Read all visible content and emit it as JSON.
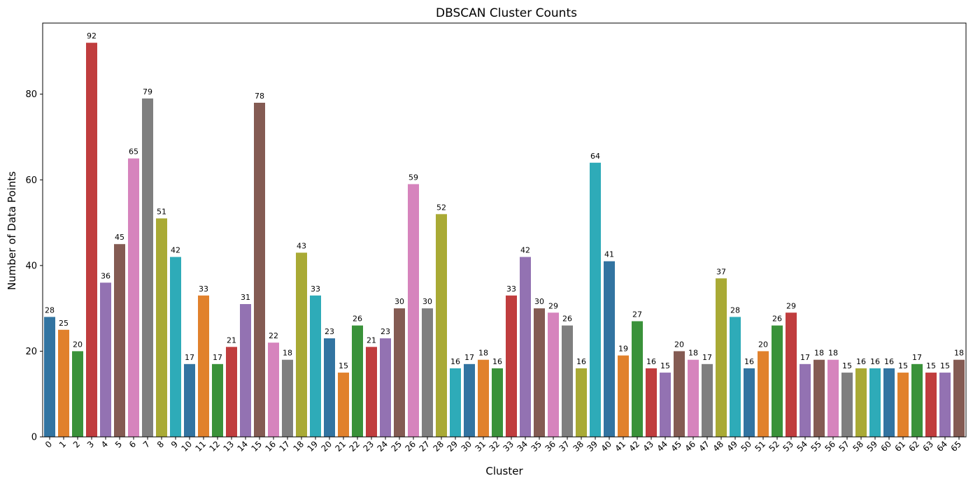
{
  "chart_data": {
    "type": "bar",
    "title": "DBSCAN Cluster Counts",
    "xlabel": "Cluster",
    "ylabel": "Number of Data Points",
    "ylim": [
      0,
      96.6
    ],
    "yticks": [
      0,
      20,
      40,
      60,
      80
    ],
    "grid": false,
    "legend": "none",
    "categories": [
      "0",
      "1",
      "2",
      "3",
      "4",
      "5",
      "6",
      "7",
      "8",
      "9",
      "10",
      "11",
      "12",
      "13",
      "14",
      "15",
      "16",
      "17",
      "18",
      "19",
      "20",
      "21",
      "22",
      "23",
      "24",
      "25",
      "26",
      "27",
      "28",
      "29",
      "30",
      "31",
      "32",
      "33",
      "34",
      "35",
      "36",
      "37",
      "38",
      "39",
      "40",
      "41",
      "42",
      "43",
      "44",
      "45",
      "46",
      "47",
      "48",
      "49",
      "50",
      "51",
      "52",
      "53",
      "54",
      "55",
      "56",
      "57",
      "58",
      "59",
      "60",
      "61",
      "62",
      "63",
      "64",
      "65"
    ],
    "values": [
      28,
      25,
      20,
      92,
      36,
      45,
      65,
      79,
      51,
      42,
      17,
      33,
      17,
      21,
      31,
      78,
      22,
      18,
      43,
      33,
      23,
      15,
      26,
      21,
      23,
      30,
      59,
      30,
      52,
      16,
      17,
      18,
      16,
      33,
      42,
      30,
      29,
      26,
      16,
      64,
      41,
      19,
      27,
      16,
      15,
      20,
      18,
      17,
      37,
      28,
      16,
      20,
      26,
      29,
      17,
      18,
      18,
      15,
      16,
      16,
      16,
      15,
      17,
      15,
      15,
      18
    ],
    "palette": [
      "#3274a1",
      "#e1812c",
      "#3a923a",
      "#c03d3e",
      "#9372b2",
      "#845b53",
      "#d684bd",
      "#7f7f7f",
      "#a9aa35",
      "#2eabb8"
    ]
  }
}
